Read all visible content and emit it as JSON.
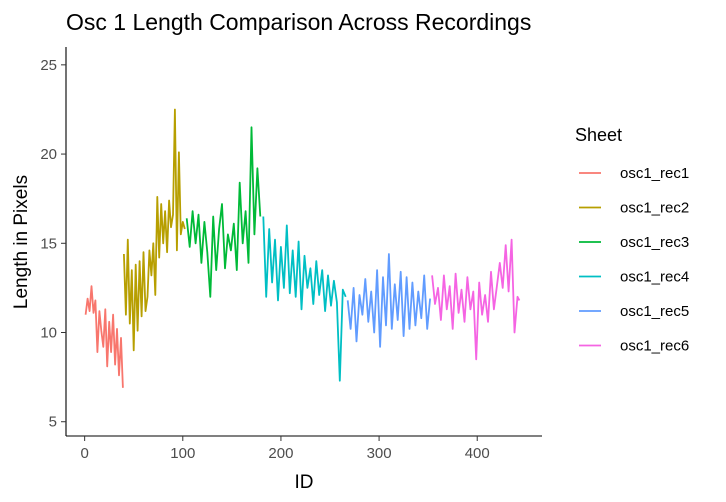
{
  "chart_data": {
    "type": "line",
    "title": "Osc 1 Length Comparison Across Recordings",
    "xlabel": "ID",
    "ylabel": "Length in Pixels",
    "xlim": [
      -19,
      466
    ],
    "ylim": [
      4.2,
      26
    ],
    "x_ticks": [
      0,
      100,
      200,
      300,
      400
    ],
    "y_ticks": [
      5,
      10,
      15,
      20,
      25
    ],
    "grid": false,
    "legend": {
      "title": "Sheet",
      "position": "right"
    },
    "series": [
      {
        "name": "osc1_rec1",
        "color": "#F8766D",
        "x": [
          1,
          3,
          5,
          7,
          9,
          11,
          13,
          15,
          17,
          19,
          21,
          23,
          25,
          27,
          29,
          31,
          33,
          35,
          37,
          39
        ],
        "y": [
          11.0,
          11.9,
          11.2,
          12.6,
          11.1,
          11.8,
          8.9,
          11.2,
          10.1,
          9.2,
          11.3,
          8.1,
          10.6,
          8.9,
          11.0,
          8.2,
          10.2,
          7.6,
          9.7,
          6.9
        ]
      },
      {
        "name": "osc1_rec2",
        "color": "#B79F00",
        "x": [
          40,
          42,
          44,
          46,
          48,
          50,
          52,
          54,
          56,
          58,
          60,
          62,
          64,
          66,
          68,
          70,
          72,
          74,
          76,
          78,
          80,
          82,
          84,
          86,
          88,
          90,
          92,
          94,
          96,
          98,
          100,
          102
        ],
        "y": [
          14.4,
          11.0,
          15.2,
          10.5,
          13.5,
          9.0,
          13.8,
          10.1,
          14.0,
          10.9,
          14.5,
          11.2,
          12.0,
          14.6,
          13.2,
          15.0,
          12.1,
          17.6,
          14.2,
          17.2,
          15.0,
          16.8,
          14.5,
          17.4,
          15.9,
          16.6,
          22.5,
          14.6,
          20.1,
          15.5,
          16.2,
          15.8
        ]
      },
      {
        "name": "osc1_rec3",
        "color": "#00BA38",
        "x": [
          104,
          107,
          110,
          113,
          116,
          119,
          122,
          125,
          128,
          131,
          134,
          137,
          140,
          143,
          146,
          149,
          152,
          155,
          158,
          161,
          164,
          167,
          170,
          173,
          176,
          179
        ],
        "y": [
          16.4,
          14.8,
          16.8,
          15.0,
          16.6,
          13.9,
          16.2,
          14.5,
          12.0,
          16.5,
          13.5,
          15.8,
          17.2,
          13.6,
          15.5,
          14.6,
          16.1,
          13.5,
          18.4,
          15.0,
          16.8,
          13.9,
          21.5,
          15.5,
          19.2,
          16.5
        ]
      },
      {
        "name": "osc1_rec4",
        "color": "#00BFC4",
        "x": [
          182,
          185,
          188,
          191,
          194,
          197,
          200,
          203,
          206,
          209,
          212,
          215,
          218,
          221,
          224,
          227,
          230,
          233,
          236,
          239,
          242,
          245,
          248,
          251,
          254,
          257,
          260,
          263,
          266
        ],
        "y": [
          16.5,
          12.0,
          15.8,
          12.8,
          15.2,
          11.8,
          14.8,
          12.5,
          16.0,
          12.2,
          14.6,
          12.0,
          15.1,
          11.3,
          14.3,
          12.5,
          13.6,
          11.6,
          14.0,
          12.1,
          13.5,
          11.2,
          13.2,
          11.5,
          12.9,
          11.7,
          7.3,
          12.4,
          12.0
        ]
      },
      {
        "name": "osc1_rec5",
        "color": "#619CFF",
        "x": [
          268,
          271,
          274,
          277,
          280,
          283,
          286,
          289,
          292,
          295,
          298,
          301,
          304,
          307,
          310,
          313,
          316,
          319,
          322,
          325,
          328,
          331,
          334,
          337,
          340,
          343,
          346,
          349,
          352
        ],
        "y": [
          11.8,
          10.2,
          12.5,
          9.5,
          12.1,
          11.0,
          13.0,
          10.6,
          12.3,
          10.0,
          13.5,
          9.2,
          13.1,
          10.4,
          14.4,
          10.2,
          12.7,
          10.7,
          13.4,
          9.8,
          13.1,
          10.2,
          12.8,
          10.4,
          12.3,
          10.8,
          13.2,
          10.2,
          11.9
        ]
      },
      {
        "name": "osc1_rec6",
        "color": "#F564E3",
        "x": [
          354,
          357,
          360,
          363,
          366,
          369,
          372,
          375,
          378,
          381,
          384,
          387,
          390,
          393,
          396,
          399,
          402,
          405,
          408,
          411,
          414,
          417,
          420,
          423,
          426,
          429,
          432,
          435,
          438,
          441,
          443
        ],
        "y": [
          13.2,
          11.6,
          12.5,
          10.7,
          13.2,
          11.3,
          12.6,
          10.2,
          13.3,
          11.1,
          12.4,
          10.6,
          13.1,
          11.3,
          12.3,
          8.5,
          12.8,
          11.0,
          12.1,
          10.6,
          13.4,
          11.3,
          12.6,
          13.9,
          12.5,
          14.9,
          12.3,
          15.2,
          10.0,
          12.0,
          11.8
        ]
      }
    ]
  }
}
